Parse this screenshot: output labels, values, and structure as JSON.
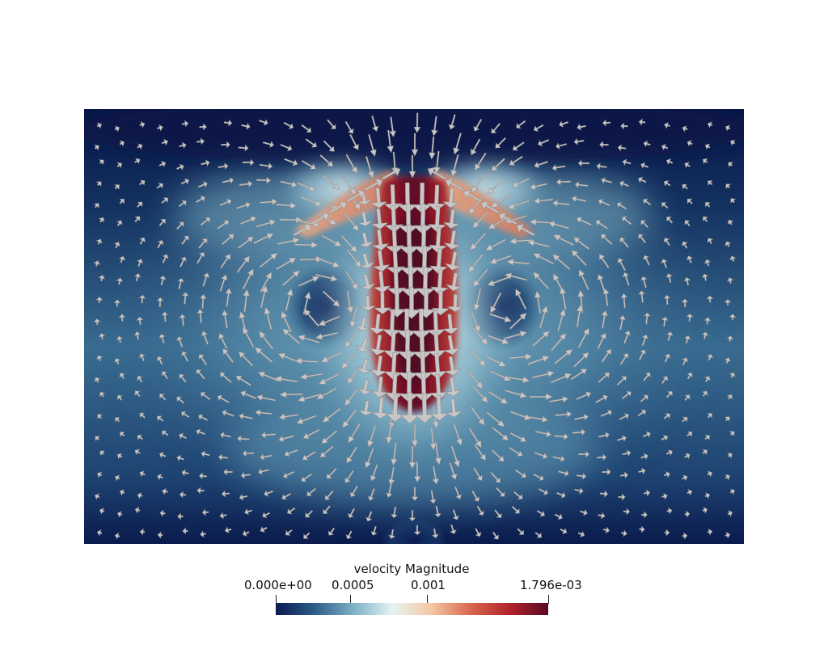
{
  "colors": {
    "background": "#ffffff",
    "colormap_stops": [
      "#0b1a52",
      "#2c5b86",
      "#7fb4c8",
      "#e7f3f3",
      "#f4c8a4",
      "#d96a52",
      "#b0222b",
      "#5b0a25"
    ],
    "arrow_fill": "#c8c6c6",
    "arrow_stroke": "#8e8c8c"
  },
  "icons": {
    "glyph": "arrow-glyph"
  },
  "legend": {
    "title": "velocity Magnitude",
    "ticks": [
      "0.000e+00",
      "0.0005",
      "0.001",
      "1.796e-03"
    ]
  }
}
